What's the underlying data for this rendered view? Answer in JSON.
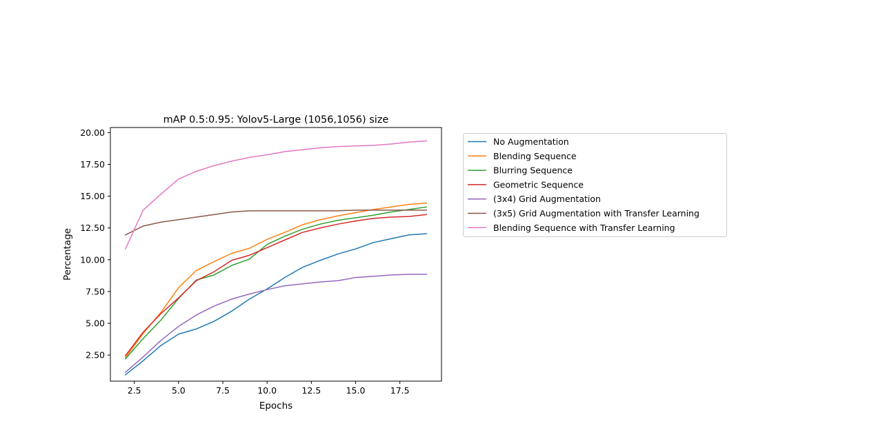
{
  "chart_data": {
    "type": "line",
    "title": "mAP 0.5:0.95: Yolov5-Large (1056,1056) size",
    "xlabel": "Epochs",
    "ylabel": "Percentage",
    "xlim": [
      1.15,
      19.85
    ],
    "ylim": [
      0.45,
      20.4
    ],
    "xticks": [
      2.5,
      5.0,
      7.5,
      10.0,
      12.5,
      15.0,
      17.5
    ],
    "xtick_labels": [
      "2.5",
      "5.0",
      "7.5",
      "10.0",
      "12.5",
      "15.0",
      "17.5"
    ],
    "yticks": [
      2.5,
      5.0,
      7.5,
      10.0,
      12.5,
      15.0,
      17.5,
      20.0
    ],
    "ytick_labels": [
      "2.50",
      "5.00",
      "7.50",
      "10.00",
      "12.50",
      "15.00",
      "17.50",
      "20.00"
    ],
    "grid": false,
    "legend_position": "outside-right",
    "x": [
      2,
      3,
      4,
      5,
      6,
      7,
      8,
      9,
      10,
      11,
      12,
      13,
      14,
      15,
      16,
      17,
      18,
      19
    ],
    "series": [
      {
        "name": "No Augmentation",
        "color": "#1f77b4",
        "values": [
          0.95,
          2.05,
          3.25,
          4.15,
          4.55,
          5.15,
          5.95,
          6.9,
          7.7,
          8.6,
          9.4,
          9.95,
          10.45,
          10.85,
          11.35,
          11.65,
          11.95,
          12.05
        ]
      },
      {
        "name": "Blending Sequence",
        "color": "#ff7f0e",
        "values": [
          2.3,
          4.2,
          5.85,
          7.8,
          9.15,
          9.85,
          10.5,
          10.9,
          11.6,
          12.15,
          12.75,
          13.15,
          13.45,
          13.7,
          13.95,
          14.15,
          14.35,
          14.45
        ]
      },
      {
        "name": "Blurring Sequence",
        "color": "#2ca02c",
        "values": [
          2.2,
          3.8,
          5.25,
          6.95,
          8.4,
          8.8,
          9.55,
          10.05,
          11.2,
          11.85,
          12.4,
          12.8,
          13.1,
          13.3,
          13.5,
          13.75,
          13.95,
          14.15
        ]
      },
      {
        "name": "Geometric Sequence",
        "color": "#d62728",
        "values": [
          2.45,
          4.3,
          5.75,
          7.0,
          8.35,
          9.05,
          9.95,
          10.35,
          10.95,
          11.55,
          12.15,
          12.5,
          12.8,
          13.05,
          13.25,
          13.35,
          13.4,
          13.55
        ]
      },
      {
        "name": "(3x4) Grid Augmentation",
        "color": "#9467bd",
        "values": [
          1.15,
          2.35,
          3.65,
          4.75,
          5.65,
          6.35,
          6.9,
          7.3,
          7.65,
          7.95,
          8.1,
          8.25,
          8.35,
          8.6,
          8.7,
          8.8,
          8.85,
          8.85
        ]
      },
      {
        "name": "(3x5) Grid Augmentation with Transfer Learning",
        "color": "#8c564b",
        "values": [
          11.95,
          12.65,
          12.95,
          13.15,
          13.35,
          13.55,
          13.75,
          13.85,
          13.85,
          13.85,
          13.85,
          13.85,
          13.85,
          13.9,
          13.9,
          13.9,
          13.9,
          13.9
        ]
      },
      {
        "name": "Blending Sequence with Transfer Learning",
        "color": "#e377c2",
        "values": [
          10.85,
          13.9,
          15.15,
          16.35,
          16.95,
          17.4,
          17.75,
          18.05,
          18.25,
          18.5,
          18.65,
          18.8,
          18.9,
          18.95,
          19.0,
          19.1,
          19.25,
          19.35
        ]
      }
    ]
  }
}
